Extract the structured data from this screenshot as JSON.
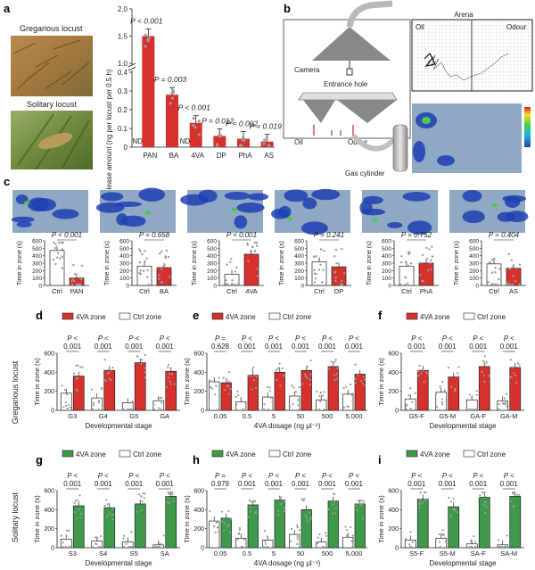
{
  "panels": {
    "a": "a",
    "b": "b",
    "c": "c",
    "d": "d",
    "e": "e",
    "f": "f",
    "g": "g",
    "h": "h",
    "i": "i"
  },
  "colors": {
    "red": "#d7312e",
    "green": "#3e9a4a",
    "white": "#ffffff",
    "dot": "#9a9a9a",
    "heat_bg": "#8fa8c4",
    "heat_blue": "#1f3fb3"
  },
  "panel_a": {
    "photo1_label": "Gregarious locust",
    "photo2_label": "Solitary locust",
    "ylabel": "Release amount (ng per locust per 0.5 h)",
    "chart_data": {
      "type": "bar",
      "categories": [
        "PAN",
        "BA",
        "4VA",
        "DP",
        "PhA",
        "AS"
      ],
      "series": [
        {
          "name": "Gregarious",
          "values": [
            1.5,
            0.28,
            0.13,
            0.06,
            0.045,
            0.03
          ]
        },
        {
          "name": "Solitary",
          "values": [
            0,
            0,
            0,
            0,
            0,
            0
          ]
        }
      ],
      "nd_labels": [
        "ND",
        "",
        "ND",
        "",
        "",
        ""
      ],
      "pvalues": [
        "P < 0.001",
        "P = 0.003",
        "P < 0.001",
        "P = 0.012",
        "P = 0.002",
        "P = 0.019"
      ],
      "yticks": [
        "0",
        "0.1",
        "0.2",
        "0.3",
        "0.4",
        "1.0",
        "1.5",
        "2.0"
      ]
    }
  },
  "panel_b": {
    "camera": "Camera",
    "entrance": "Entrance hole",
    "oil": "Oil",
    "odour": "Odour",
    "gas": "Gas cylinder",
    "arena_title": "Arena",
    "arena_oil": "Oil",
    "arena_odour": "Odour"
  },
  "panel_c": {
    "ylabel": "Time in zone (s)",
    "ctrl": "Ctrl",
    "yticks": [
      "0",
      "100",
      "200",
      "300",
      "400",
      "500",
      "600"
    ],
    "chart_data": [
      {
        "type": "bar",
        "categories": [
          "Ctrl",
          "PAN"
        ],
        "values": [
          470,
          100
        ],
        "pvalue": "P < 0.001"
      },
      {
        "type": "bar",
        "categories": [
          "Ctrl",
          "BA"
        ],
        "values": [
          260,
          240
        ],
        "pvalue": "P = 0.658"
      },
      {
        "type": "bar",
        "categories": [
          "Ctrl",
          "4VA"
        ],
        "values": [
          150,
          420
        ],
        "pvalue": "P < 0.001"
      },
      {
        "type": "bar",
        "categories": [
          "Ctrl",
          "DP"
        ],
        "values": [
          320,
          250
        ],
        "pvalue": "P = 0.241"
      },
      {
        "type": "bar",
        "categories": [
          "Ctrl",
          "PhA"
        ],
        "values": [
          260,
          300
        ],
        "pvalue": "P = 0.752"
      },
      {
        "type": "bar",
        "categories": [
          "Ctrl",
          "AS"
        ],
        "values": [
          290,
          230
        ],
        "pvalue": "P = 0.404"
      }
    ]
  },
  "rows": {
    "gregarious": "Gregarious locust",
    "solitary": "Solitary locust"
  },
  "legend": {
    "zone_4va": "4VA zone",
    "zone_ctrl": "Ctrl zone"
  },
  "axis": {
    "ylabel": "Time in zone (s)",
    "stage": "Developmental stage",
    "dosage": "4VA dosage (ng μl⁻¹)"
  },
  "yticks_main": [
    "0",
    "200",
    "400",
    "600"
  ],
  "p_lt": "P <",
  "p_eq": "P =",
  "panel_d": {
    "chart_data": {
      "type": "bar",
      "categories": [
        "G3",
        "G4",
        "G5",
        "GA"
      ],
      "series": [
        {
          "name": "4VA zone",
          "values": [
            360,
            420,
            500,
            410
          ]
        },
        {
          "name": "Ctrl zone",
          "values": [
            180,
            130,
            80,
            100
          ]
        }
      ],
      "pvalues": [
        "0.001",
        "0.001",
        "0.001",
        "0.001"
      ],
      "pops": [
        "<",
        "<",
        "<",
        "<"
      ]
    }
  },
  "panel_e": {
    "chart_data": {
      "type": "bar",
      "categories": [
        "0.05",
        "0.5",
        "5",
        "50",
        "500",
        "5,000"
      ],
      "series": [
        {
          "name": "4VA zone",
          "values": [
            290,
            370,
            400,
            420,
            460,
            380
          ]
        },
        {
          "name": "Ctrl zone",
          "values": [
            300,
            90,
            140,
            150,
            110,
            170
          ]
        }
      ],
      "pvalues": [
        "0.628",
        "0.001",
        "0.001",
        "0.001",
        "0.001",
        "0.001"
      ],
      "pops": [
        "=",
        "<",
        "<",
        "<",
        "<",
        "<"
      ]
    }
  },
  "panel_f": {
    "chart_data": {
      "type": "bar",
      "categories": [
        "G5-F",
        "G5-M",
        "GA-F",
        "GA-M"
      ],
      "series": [
        {
          "name": "4VA zone",
          "values": [
            420,
            350,
            460,
            450
          ]
        },
        {
          "name": "Ctrl zone",
          "values": [
            120,
            190,
            110,
            100
          ]
        }
      ],
      "pvalues": [
        "0.001",
        "0.001",
        "0.001",
        "0.001"
      ],
      "pops": [
        "<",
        "<",
        "<",
        "<"
      ]
    }
  },
  "panel_g": {
    "chart_data": {
      "type": "bar",
      "categories": [
        "S3",
        "S4",
        "S5",
        "SA"
      ],
      "series": [
        {
          "name": "4VA zone",
          "values": [
            440,
            420,
            460,
            540
          ]
        },
        {
          "name": "Ctrl zone",
          "values": [
            90,
            70,
            60,
            30
          ]
        }
      ],
      "pvalues": [
        "0.001",
        "0.001",
        "0.001",
        "0.001"
      ],
      "pops": [
        "<",
        "<",
        "<",
        "<"
      ]
    }
  },
  "panel_h": {
    "chart_data": {
      "type": "bar",
      "categories": [
        "0.05",
        "0.5",
        "5",
        "50",
        "500",
        "5,000"
      ],
      "series": [
        {
          "name": "4VA zone",
          "values": [
            310,
            450,
            500,
            400,
            490,
            460
          ]
        },
        {
          "name": "Ctrl zone",
          "values": [
            280,
            100,
            80,
            140,
            60,
            110
          ]
        }
      ],
      "pvalues": [
        "0.979",
        "0.001",
        "0.001",
        "0.001",
        "0.001",
        "0.001"
      ],
      "pops": [
        "=",
        "<",
        "<",
        "<",
        "<",
        "<"
      ]
    }
  },
  "panel_i": {
    "chart_data": {
      "type": "bar",
      "categories": [
        "S5-F",
        "S5-M",
        "SA-F",
        "SA-M"
      ],
      "series": [
        {
          "name": "4VA zone",
          "values": [
            510,
            430,
            530,
            540
          ]
        },
        {
          "name": "Ctrl zone",
          "values": [
            80,
            100,
            40,
            30
          ]
        }
      ],
      "pvalues": [
        "0.001",
        "0.001",
        "0.001",
        "0.001"
      ],
      "pops": [
        "<",
        "<",
        "<",
        "<"
      ]
    }
  }
}
